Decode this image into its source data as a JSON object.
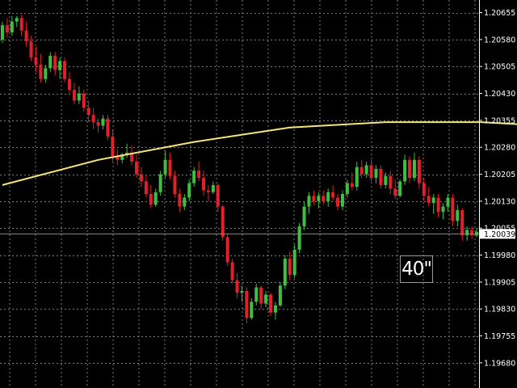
{
  "colors": {
    "background": "#000000",
    "grid": "#7a7a7a",
    "bull": "#3fbf3f",
    "bear": "#e0202a",
    "moving_average": "#f5e57a",
    "bid_line": "#8a8a8a",
    "price_tag": "#ffffff"
  },
  "timer": {
    "text": "40\""
  },
  "chart_data": {
    "type": "candlestick",
    "grid": true,
    "ylim": [
      1.1961,
      1.2069
    ],
    "y_ticks": [
      {
        "value": 1.20655,
        "label": "1.20655"
      },
      {
        "value": 1.2058,
        "label": "1.20580"
      },
      {
        "value": 1.20505,
        "label": "1.20505"
      },
      {
        "value": 1.2043,
        "label": "1.20430"
      },
      {
        "value": 1.20355,
        "label": "1.20355"
      },
      {
        "value": 1.2028,
        "label": "1.20280"
      },
      {
        "value": 1.20205,
        "label": "1.20205"
      },
      {
        "value": 1.2013,
        "label": "1.20130"
      },
      {
        "value": 1.20055,
        "label": "1.20055"
      },
      {
        "value": 1.1998,
        "label": "1.19980"
      },
      {
        "value": 1.19905,
        "label": "1.19905"
      },
      {
        "value": 1.1983,
        "label": "1.19830"
      },
      {
        "value": 1.19755,
        "label": "1.19755"
      },
      {
        "value": 1.1968,
        "label": "1.19680"
      }
    ],
    "current_price": {
      "value": 1.20039,
      "label": "1.20039"
    },
    "moving_average": [
      [
        0,
        1.20175
      ],
      [
        20,
        1.20245
      ],
      [
        40,
        1.20295
      ],
      [
        60,
        1.20335
      ],
      [
        80,
        1.2035
      ],
      [
        100,
        1.2035
      ],
      [
        120,
        1.20335
      ],
      [
        140,
        1.20305
      ],
      [
        160,
        1.20265
      ],
      [
        180,
        1.2022
      ],
      [
        200,
        1.2018
      ],
      [
        220,
        1.2014
      ],
      [
        240,
        1.20112
      ],
      [
        260,
        1.201
      ],
      [
        280,
        1.20092
      ],
      [
        300,
        1.2008
      ]
    ],
    "candles": [
      [
        1.2058,
        1.2063,
        1.2057,
        1.2062
      ],
      [
        1.2062,
        1.2064,
        1.20585,
        1.206
      ],
      [
        1.206,
        1.20645,
        1.2059,
        1.2063
      ],
      [
        1.2063,
        1.20645,
        1.20615,
        1.2064
      ],
      [
        1.2064,
        1.2065,
        1.2059,
        1.20605
      ],
      [
        1.20605,
        1.2063,
        1.2056,
        1.20575
      ],
      [
        1.20575,
        1.2059,
        1.2052,
        1.2053
      ],
      [
        1.2053,
        1.2056,
        1.2049,
        1.2051
      ],
      [
        1.2051,
        1.2054,
        1.2046,
        1.2047
      ],
      [
        1.2047,
        1.2051,
        1.2046,
        1.205
      ],
      [
        1.205,
        1.20545,
        1.2049,
        1.20535
      ],
      [
        1.20535,
        1.20545,
        1.2048,
        1.20495
      ],
      [
        1.20495,
        1.2053,
        1.2047,
        1.2052
      ],
      [
        1.2052,
        1.2053,
        1.2046,
        1.2047
      ],
      [
        1.2047,
        1.2049,
        1.2043,
        1.2044
      ],
      [
        1.2044,
        1.2046,
        1.204,
        1.2041
      ],
      [
        1.2041,
        1.2045,
        1.204,
        1.2043
      ],
      [
        1.2043,
        1.2044,
        1.2038,
        1.2039
      ],
      [
        1.2039,
        1.2041,
        1.2035,
        1.2037
      ],
      [
        1.2037,
        1.2039,
        1.2033,
        1.2035
      ],
      [
        1.2035,
        1.2036,
        1.2032,
        1.2034
      ],
      [
        1.2034,
        1.2037,
        1.2033,
        1.2036
      ],
      [
        1.2036,
        1.2037,
        1.203,
        1.2031
      ],
      [
        1.2031,
        1.2033,
        1.2024,
        1.20255
      ],
      [
        1.20255,
        1.20275,
        1.2023,
        1.20245
      ],
      [
        1.20245,
        1.20265,
        1.20235,
        1.2026
      ],
      [
        1.2026,
        1.2029,
        1.2025,
        1.20265
      ],
      [
        1.20265,
        1.20285,
        1.2023,
        1.2024
      ],
      [
        1.2024,
        1.2026,
        1.20195,
        1.20205
      ],
      [
        1.20205,
        1.20225,
        1.2017,
        1.20185
      ],
      [
        1.20185,
        1.202,
        1.2014,
        1.2015
      ],
      [
        1.2015,
        1.20175,
        1.2011,
        1.2012
      ],
      [
        1.2012,
        1.20165,
        1.20115,
        1.20155
      ],
      [
        1.20155,
        1.20215,
        1.20145,
        1.20205
      ],
      [
        1.20205,
        1.2027,
        1.20195,
        1.20245
      ],
      [
        1.20245,
        1.20265,
        1.2019,
        1.202
      ],
      [
        1.202,
        1.20215,
        1.2014,
        1.2015
      ],
      [
        1.2015,
        1.20165,
        1.201,
        1.20115
      ],
      [
        1.20115,
        1.2015,
        1.20105,
        1.2014
      ],
      [
        1.2014,
        1.2019,
        1.2013,
        1.2018
      ],
      [
        1.2018,
        1.20225,
        1.2017,
        1.20215
      ],
      [
        1.20215,
        1.2024,
        1.20185,
        1.20195
      ],
      [
        1.20195,
        1.20215,
        1.20145,
        1.2016
      ],
      [
        1.2016,
        1.20175,
        1.2013,
        1.20155
      ],
      [
        1.20155,
        1.20185,
        1.2015,
        1.20175
      ],
      [
        1.20175,
        1.2018,
        1.201,
        1.20115
      ],
      [
        1.20115,
        1.2012,
        1.2002,
        1.2003
      ],
      [
        1.2003,
        1.2004,
        1.1995,
        1.1996
      ],
      [
        1.1996,
        1.1997,
        1.199,
        1.1991
      ],
      [
        1.1991,
        1.1993,
        1.1986,
        1.19875
      ],
      [
        1.19875,
        1.19895,
        1.1985,
        1.1988
      ],
      [
        1.1988,
        1.1989,
        1.1979,
        1.19805
      ],
      [
        1.19805,
        1.1986,
        1.198,
        1.1985
      ],
      [
        1.1985,
        1.199,
        1.1984,
        1.1989
      ],
      [
        1.1989,
        1.19895,
        1.1983,
        1.19845
      ],
      [
        1.19845,
        1.1988,
        1.19835,
        1.1987
      ],
      [
        1.1987,
        1.19875,
        1.1981,
        1.1982
      ],
      [
        1.1982,
        1.1985,
        1.198,
        1.1984
      ],
      [
        1.1984,
        1.19905,
        1.19835,
        1.19895
      ],
      [
        1.19895,
        1.1998,
        1.19885,
        1.1997
      ],
      [
        1.1997,
        1.1999,
        1.1991,
        1.19925
      ],
      [
        1.19925,
        1.2001,
        1.19915,
        1.19995
      ],
      [
        1.19995,
        1.2007,
        1.19985,
        1.2006
      ],
      [
        1.2006,
        1.2013,
        1.2005,
        1.20115
      ],
      [
        1.20115,
        1.20155,
        1.20095,
        1.20145
      ],
      [
        1.20145,
        1.2016,
        1.2012,
        1.2013
      ],
      [
        1.2013,
        1.20155,
        1.2011,
        1.20145
      ],
      [
        1.20145,
        1.2016,
        1.2012,
        1.2013
      ],
      [
        1.2013,
        1.20165,
        1.20115,
        1.20155
      ],
      [
        1.20155,
        1.20175,
        1.2013,
        1.2014
      ],
      [
        1.2014,
        1.2015,
        1.20105,
        1.20115
      ],
      [
        1.20115,
        1.2016,
        1.20105,
        1.2015
      ],
      [
        1.2015,
        1.2019,
        1.2014,
        1.2018
      ],
      [
        1.2018,
        1.2021,
        1.2016,
        1.2017
      ],
      [
        1.2017,
        1.2024,
        1.2016,
        1.20225
      ],
      [
        1.20225,
        1.20245,
        1.20195,
        1.20205
      ],
      [
        1.20205,
        1.2024,
        1.20195,
        1.2023
      ],
      [
        1.2023,
        1.20245,
        1.20185,
        1.20195
      ],
      [
        1.20195,
        1.2023,
        1.2018,
        1.2022
      ],
      [
        1.2022,
        1.2023,
        1.20165,
        1.20175
      ],
      [
        1.20175,
        1.2021,
        1.20165,
        1.202
      ],
      [
        1.202,
        1.20215,
        1.2015,
        1.20165
      ],
      [
        1.20165,
        1.2019,
        1.20135,
        1.20145
      ],
      [
        1.20145,
        1.2019,
        1.2014,
        1.20185
      ],
      [
        1.20185,
        1.2026,
        1.20175,
        1.20245
      ],
      [
        1.20245,
        1.20255,
        1.2018,
        1.20195
      ],
      [
        1.20195,
        1.20265,
        1.20185,
        1.20245
      ],
      [
        1.20245,
        1.20255,
        1.20165,
        1.2018
      ],
      [
        1.2018,
        1.20195,
        1.2013,
        1.20145
      ],
      [
        1.20145,
        1.2017,
        1.20115,
        1.20125
      ],
      [
        1.20125,
        1.2015,
        1.20095,
        1.2014
      ],
      [
        1.2014,
        1.2015,
        1.20085,
        1.201
      ],
      [
        1.201,
        1.20125,
        1.2008,
        1.20115
      ],
      [
        1.20115,
        1.2015,
        1.201,
        1.2014
      ],
      [
        1.2014,
        1.2015,
        1.2006,
        1.20075
      ],
      [
        1.20075,
        1.2012,
        1.2006,
        1.20105
      ],
      [
        1.20105,
        1.2011,
        1.2002,
        1.20035
      ],
      [
        1.20035,
        1.2006,
        1.2002,
        1.2005
      ],
      [
        1.2005,
        1.2006,
        1.20025,
        1.20035
      ],
      [
        1.20035,
        1.20055,
        1.2003,
        1.20045
      ]
    ]
  }
}
